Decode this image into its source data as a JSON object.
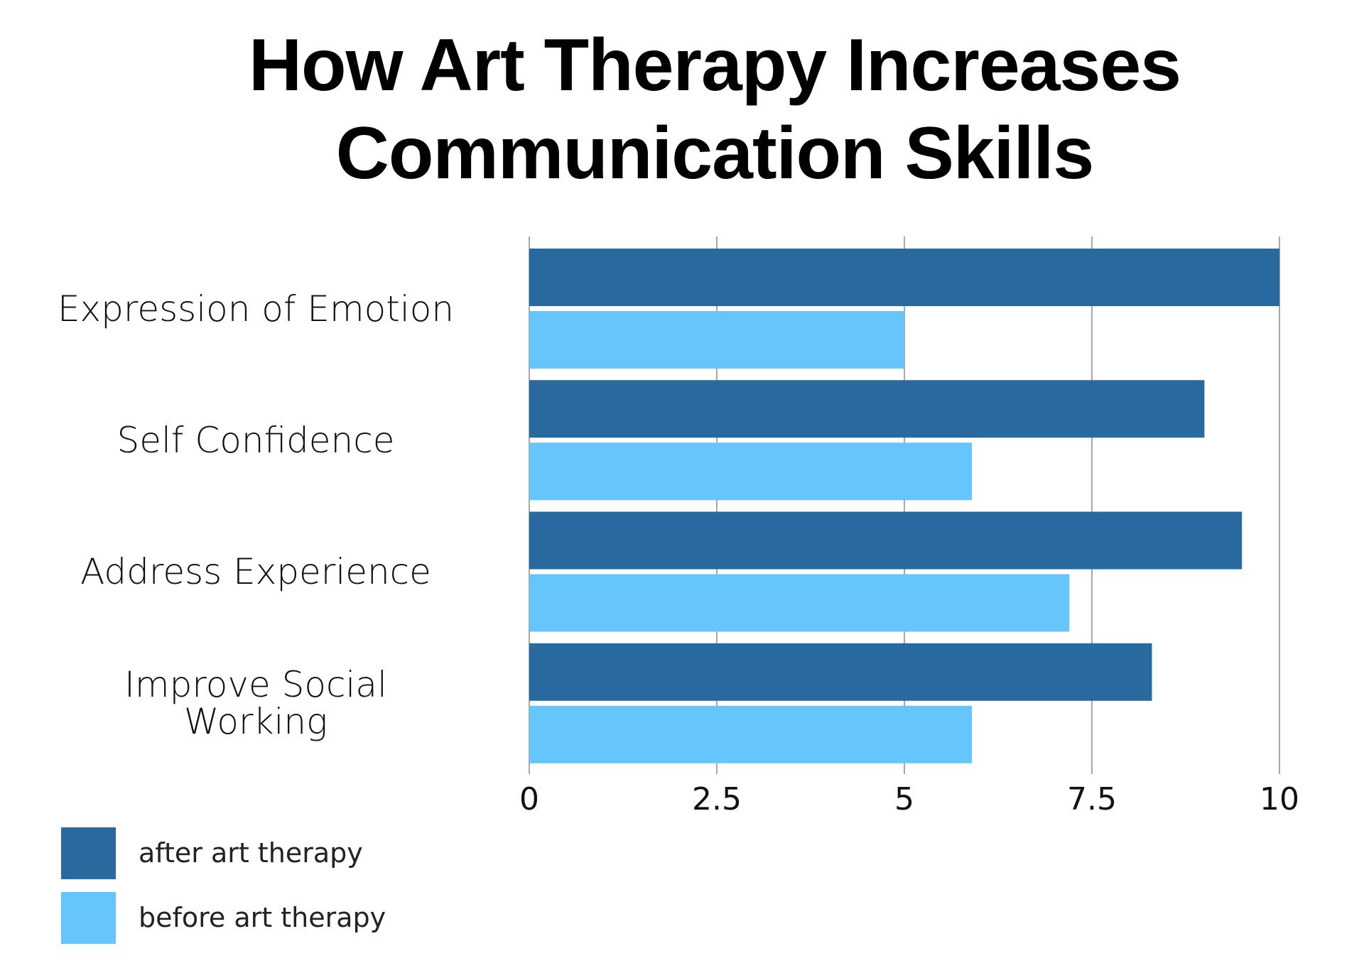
{
  "chart_data": {
    "type": "bar",
    "orientation": "horizontal",
    "title": "How Art Therapy Increases Communication Skills",
    "categories": [
      "Expression of Emotion",
      "Self Confidence",
      "Address Experience",
      "Improve Social\nWorking"
    ],
    "series": [
      {
        "name": "after art therapy",
        "color": "#286a9f",
        "values": [
          10,
          9,
          9.5,
          8.3
        ]
      },
      {
        "name": "before art therapy",
        "color": "#66c6fc",
        "values": [
          5,
          5.9,
          7.2,
          5.9
        ]
      }
    ],
    "xlim": [
      0,
      10
    ],
    "xticks": [
      0,
      2.5,
      5,
      7.5,
      10
    ],
    "grid": true,
    "legend": "bottom-left"
  }
}
